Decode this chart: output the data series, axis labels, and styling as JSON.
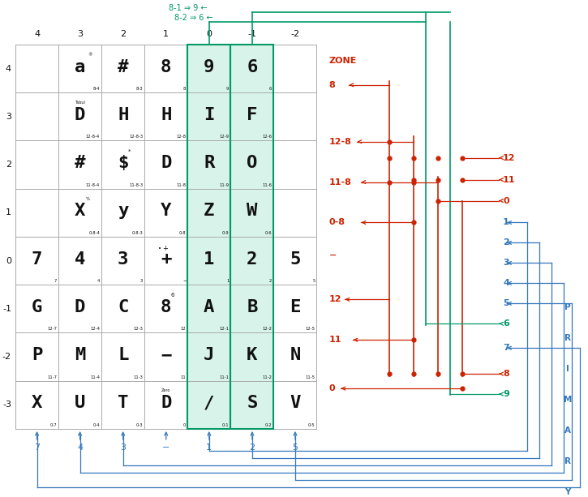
{
  "grid_col_labels": [
    "4",
    "3",
    "2",
    "1",
    "0",
    "-1",
    "-2"
  ],
  "grid_row_labels": [
    "4",
    "3",
    "2",
    "1",
    "0",
    "-1",
    "-2",
    "-3"
  ],
  "highlight_color": "#d8f4ea",
  "grid_color": "#aaaaaa",
  "orange": "#cc2200",
  "blue": "#3377bb",
  "green": "#009966",
  "black": "#111111",
  "white": "#ffffff",
  "cell_chars": {
    "1,0": "a",
    "2,0": "#",
    "3,0": "8",
    "4,0": "9",
    "5,0": "6",
    "1,1": "D",
    "2,1": "H",
    "3,1": "H",
    "4,1": "I",
    "5,1": "F",
    "1,2": "#",
    "2,2": "$",
    "3,2": "D",
    "4,2": "R",
    "5,2": "O",
    "1,3": "X",
    "2,3": "y",
    "3,3": "Y",
    "4,3": "Z",
    "5,3": "W",
    "0,4": "7",
    "1,4": "4",
    "2,4": "3",
    "3,4": "+",
    "4,4": "1",
    "5,4": "2",
    "6,4": "5",
    "0,5": "G",
    "1,5": "D",
    "2,5": "C",
    "3,5": "8",
    "4,5": "A",
    "5,5": "B",
    "6,5": "E",
    "0,6": "P",
    "1,6": "M",
    "2,6": "L",
    "3,6": "−",
    "4,6": "J",
    "5,6": "K",
    "6,6": "N",
    "0,7": "X",
    "1,7": "U",
    "2,7": "T",
    "3,7": "D",
    "4,7": "/",
    "5,7": "S",
    "6,7": "V"
  },
  "cell_small": {
    "1,0": "8-4",
    "2,0": "8-3",
    "3,0": "8",
    "4,0": "9",
    "5,0": "6",
    "1,1": "12-8-4",
    "2,1": "12-8-3",
    "3,1": "12-8",
    "4,1": "12-9",
    "5,1": "12-6",
    "1,2": "11-8-4",
    "2,2": "11-8-3",
    "3,2": "11-8",
    "4,2": "11-9",
    "5,2": "11-6",
    "1,3": "0-8-4",
    "2,3": "0-8-3",
    "3,3": "0-8",
    "4,3": "0-9",
    "5,3": "0-6",
    "0,4": "7",
    "1,4": "4",
    "2,4": "3",
    "3,4": "−",
    "4,4": "1",
    "5,4": "2",
    "6,4": "5",
    "0,5": "12-7",
    "1,5": "12-4",
    "2,5": "12-3",
    "3,5": "12",
    "4,5": "12-1",
    "5,5": "12-2",
    "6,5": "12-5",
    "0,6": "11-7",
    "1,6": "11-4",
    "2,6": "11-3",
    "3,6": "11",
    "4,6": "11-1",
    "5,6": "11-2",
    "6,6": "11-5",
    "0,7": "0-7",
    "1,7": "0-4",
    "2,7": "0-3",
    "3,7": "0",
    "4,7": "0-1",
    "5,7": "0-2",
    "6,7": "0-5"
  },
  "zone_labels": [
    "8",
    "12-8",
    "11-8",
    "0-8",
    "−",
    "12",
    "11",
    "0"
  ],
  "primary_labels": [
    "12",
    "11",
    "0",
    "1",
    "2",
    "3",
    "4",
    "5",
    "6",
    "7",
    "8",
    "9"
  ],
  "primary_colors": [
    "orange",
    "orange",
    "orange",
    "blue",
    "blue",
    "blue",
    "blue",
    "blue",
    "green",
    "blue",
    "orange",
    "green"
  ],
  "bottom_labels": [
    "7",
    "4",
    "3",
    "−",
    "1",
    "2",
    "5"
  ],
  "bottom_col_indices": [
    0,
    1,
    2,
    3,
    4,
    5,
    6
  ]
}
